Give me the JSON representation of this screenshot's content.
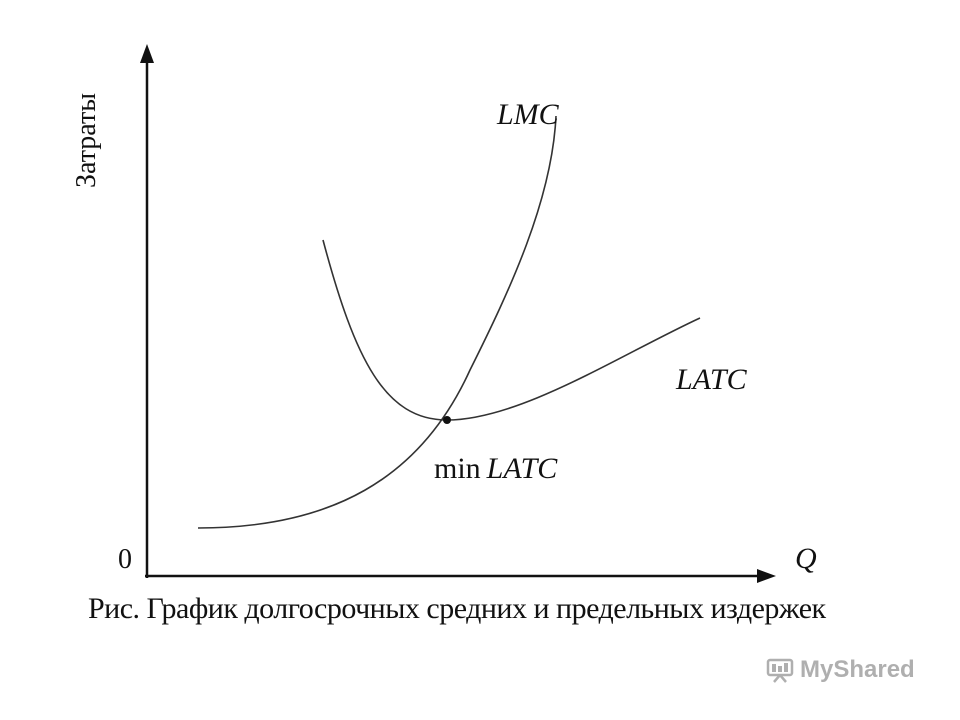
{
  "diagram": {
    "y_axis_label": "Затраты",
    "x_axis_label": "Q",
    "origin_label": "0",
    "curve_lmc_label": "LMC",
    "curve_latc_label": "LATC",
    "point_label_prefix": "min",
    "point_label_curve": "LATC",
    "caption": "Рис. График долгосрочных средних и предельных издержек",
    "line_color": "#333333"
  },
  "watermark": {
    "text": "MyShared",
    "icon": "presentation-board-icon",
    "color": "#6f6f6f"
  }
}
